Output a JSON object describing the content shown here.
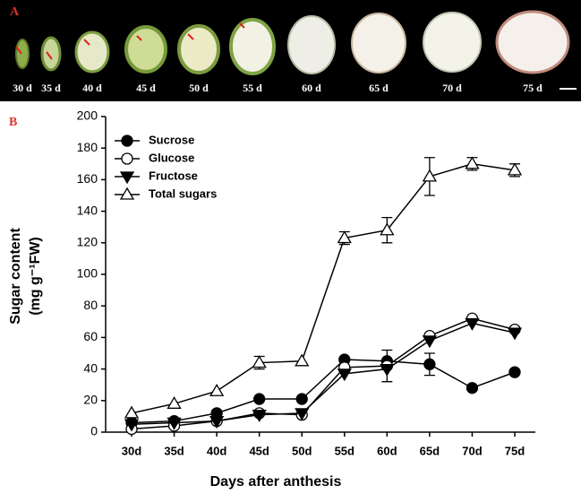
{
  "panel_a": {
    "label": "A",
    "stages": [
      "30 d",
      "35 d",
      "40 d",
      "45 d",
      "50 d",
      "55 d",
      "60 d",
      "65 d",
      "70 d",
      "75 d"
    ]
  },
  "chart_data": {
    "type": "line",
    "panel_label": "B",
    "xlabel": "Days after anthesis",
    "ylabel": [
      "Sugar content",
      "(mg g⁻¹FW)"
    ],
    "categories": [
      "30d",
      "35d",
      "40d",
      "45d",
      "50d",
      "55d",
      "60d",
      "65d",
      "70d",
      "75d"
    ],
    "ylim": [
      0,
      200
    ],
    "yticks": [
      0,
      20,
      40,
      60,
      80,
      100,
      120,
      140,
      160,
      180,
      200
    ],
    "legend": "upper left",
    "series": [
      {
        "name": "Sucrose",
        "color": "#000000",
        "marker": "circle-filled",
        "values": [
          6,
          7,
          12,
          21,
          21,
          46,
          45,
          43,
          28,
          38
        ],
        "errors": [
          null,
          null,
          null,
          null,
          null,
          null,
          null,
          7,
          null,
          null
        ]
      },
      {
        "name": "Glucose",
        "color": "#000000",
        "marker": "circle-open",
        "values": [
          2,
          4,
          7,
          12,
          11,
          41,
          42,
          61,
          72,
          65
        ],
        "errors": [
          null,
          null,
          null,
          null,
          null,
          null,
          10,
          null,
          null,
          null
        ]
      },
      {
        "name": "Fructose",
        "color": "#000000",
        "marker": "triangle-down-filled",
        "values": [
          5,
          6,
          7,
          11,
          12,
          37,
          40,
          58,
          69,
          63
        ],
        "errors": [
          null,
          null,
          null,
          null,
          null,
          null,
          null,
          null,
          null,
          null
        ]
      },
      {
        "name": "Total sugars",
        "color": "#000000",
        "marker": "triangle-up-open",
        "values": [
          12,
          18,
          26,
          44,
          45,
          123,
          128,
          162,
          170,
          166
        ],
        "errors": [
          null,
          null,
          null,
          4,
          null,
          4,
          8,
          12,
          4,
          4
        ]
      }
    ]
  }
}
